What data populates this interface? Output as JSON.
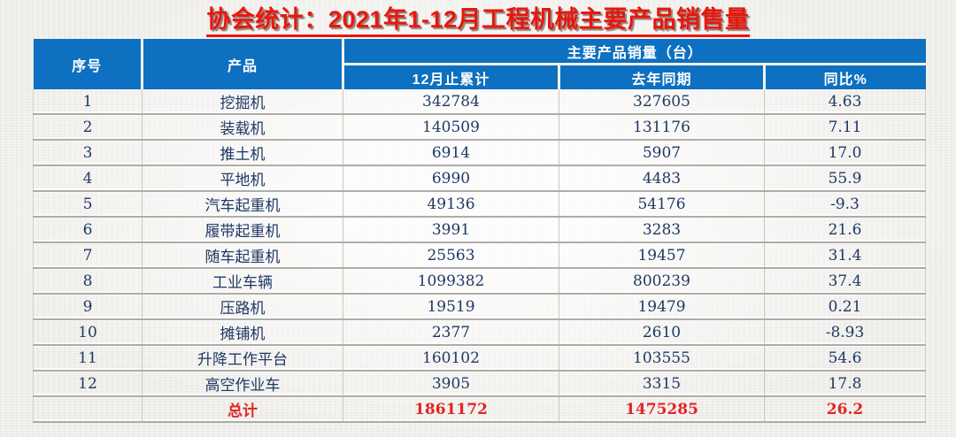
{
  "page_title": "协会统计：2021年1-12月工程机械主要产品销售量",
  "colors": {
    "title_red": "#e8170d",
    "header_blue": "#0e70c0",
    "body_text_navy": "#1f3864",
    "total_red": "#e32424",
    "background": "#f3f2ef"
  },
  "table": {
    "headers": {
      "index": "序号",
      "product": "产品",
      "group": "主要产品销量（台）",
      "cumulative": "12月止累计",
      "last_year": "去年同期",
      "yoy": "同比%"
    },
    "rows": [
      {
        "no": "1",
        "product": "挖掘机",
        "cumulative": "342784",
        "last_year": "327605",
        "yoy": "4.63"
      },
      {
        "no": "2",
        "product": "装载机",
        "cumulative": "140509",
        "last_year": "131176",
        "yoy": "7.11"
      },
      {
        "no": "3",
        "product": "推土机",
        "cumulative": "6914",
        "last_year": "5907",
        "yoy": "17.0"
      },
      {
        "no": "4",
        "product": "平地机",
        "cumulative": "6990",
        "last_year": "4483",
        "yoy": "55.9"
      },
      {
        "no": "5",
        "product": "汽车起重机",
        "cumulative": "49136",
        "last_year": "54176",
        "yoy": "-9.3"
      },
      {
        "no": "6",
        "product": "履带起重机",
        "cumulative": "3991",
        "last_year": "3283",
        "yoy": "21.6"
      },
      {
        "no": "7",
        "product": "随车起重机",
        "cumulative": "25563",
        "last_year": "19457",
        "yoy": "31.4"
      },
      {
        "no": "8",
        "product": "工业车辆",
        "cumulative": "1099382",
        "last_year": "800239",
        "yoy": "37.4"
      },
      {
        "no": "9",
        "product": "压路机",
        "cumulative": "19519",
        "last_year": "19479",
        "yoy": "0.21"
      },
      {
        "no": "10",
        "product": "摊铺机",
        "cumulative": "2377",
        "last_year": "2610",
        "yoy": "-8.93"
      },
      {
        "no": "11",
        "product": "升降工作平台",
        "cumulative": "160102",
        "last_year": "103555",
        "yoy": "54.6"
      },
      {
        "no": "12",
        "product": "高空作业车",
        "cumulative": "3905",
        "last_year": "3315",
        "yoy": "17.8"
      }
    ],
    "total": {
      "no": "",
      "label": "总计",
      "cumulative": "1861172",
      "last_year": "1475285",
      "yoy": "26.2"
    }
  }
}
